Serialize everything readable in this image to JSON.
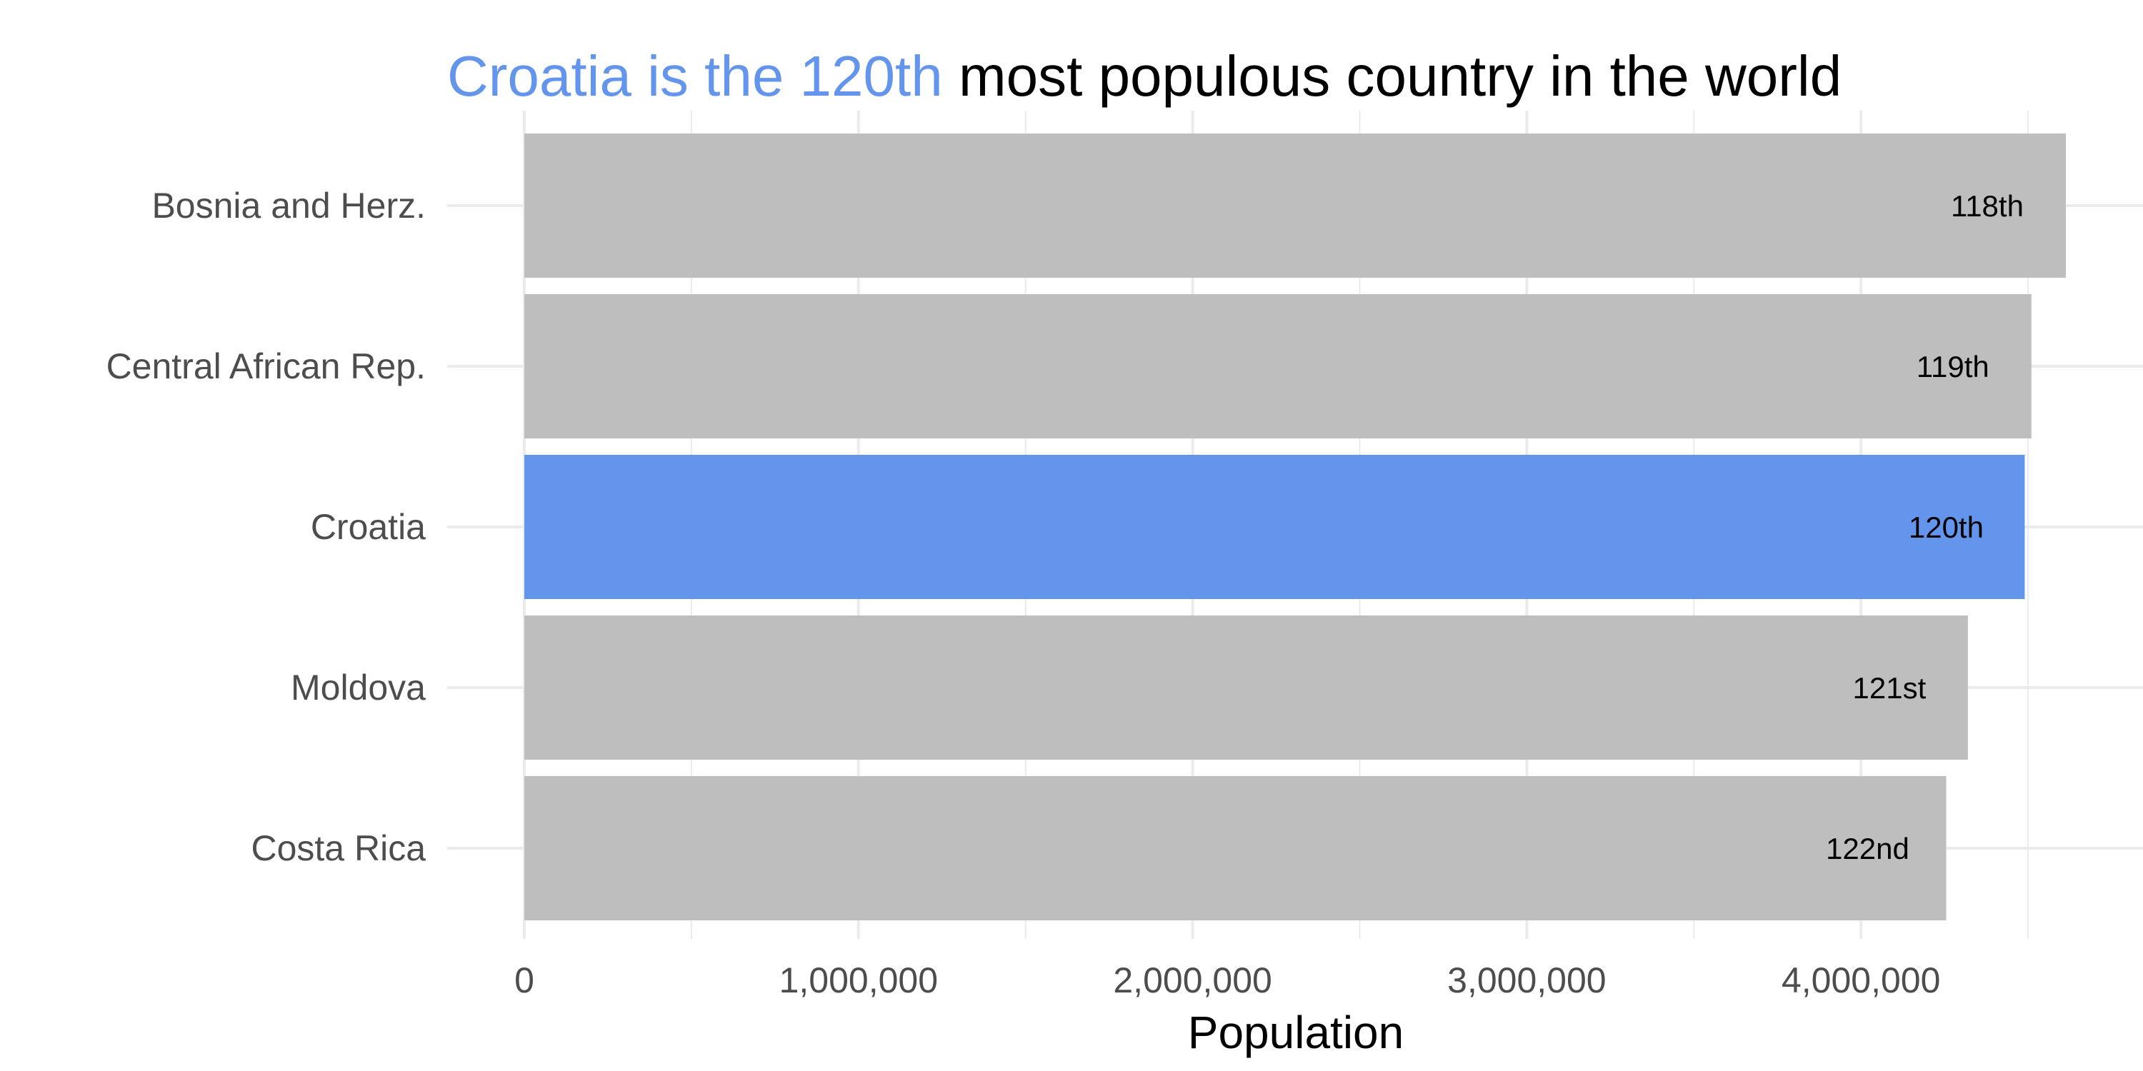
{
  "chart_data": {
    "type": "bar",
    "orientation": "horizontal",
    "title": {
      "highlight": "Croatia is the 120th",
      "rest": " most populous country in the world"
    },
    "xlabel": "Population",
    "ylabel": "",
    "xlim": [
      0,
      4600000
    ],
    "x_ticks": [
      0,
      1000000,
      2000000,
      3000000,
      4000000
    ],
    "x_tick_labels": [
      "0",
      "1,000,000",
      "2,000,000",
      "3,000,000",
      "4,000,000"
    ],
    "categories": [
      "Bosnia and Herz.",
      "Central African Rep.",
      "Croatia",
      "Moldova",
      "Costa Rica"
    ],
    "values": [
      4613000,
      4510000,
      4490000,
      4320000,
      4255000
    ],
    "rank_labels": [
      "118th",
      "119th",
      "120th",
      "121st",
      "122nd"
    ],
    "highlighted_category": "Croatia",
    "grid": true,
    "legend": false,
    "colors": {
      "bar": "#bebebe",
      "highlight": "#6495ed",
      "title_text": "#000000"
    }
  }
}
